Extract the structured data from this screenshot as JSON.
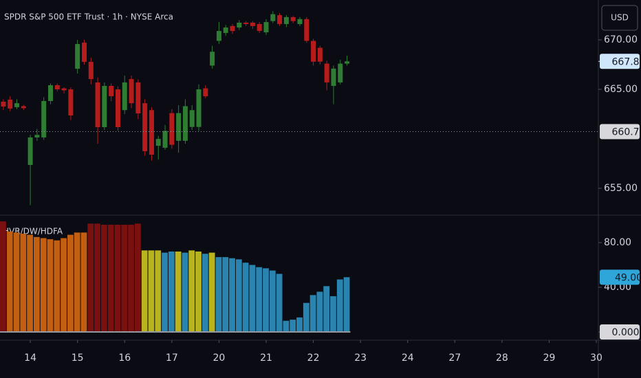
{
  "toolbar": {
    "currency": "USD"
  },
  "chart_data": [
    {
      "type": "candlestick",
      "title": "SPDR S&P 500 ETF Trust · 1h · NYSE Arca",
      "open": [
        663.75,
        663.96,
        663.2,
        663.3,
        657.36,
        660.14,
        660.14,
        663.82,
        665.42,
        665.1,
        665.0,
        667.08,
        669.72,
        667.78,
        665.7,
        661.18,
        665.35,
        665.0,
        662.9,
        666.04,
        665.7,
        663.6,
        662.9,
        659.3,
        659.1,
        662.6,
        659.8,
        659.8,
        661.2,
        661.2,
        665.1,
        667.4,
        669.9,
        670.7,
        671.4,
        671.25,
        671.74,
        671.74,
        671.6,
        670.76,
        671.9,
        672.5,
        671.6,
        672.3,
        671.6,
        672.1,
        669.9,
        669.2,
        667.6,
        665.35,
        665.7,
        667.6
      ],
      "high": [
        664.0,
        664.3,
        664.0,
        663.4,
        660.4,
        661.0,
        664.2,
        665.6,
        665.6,
        665.2,
        665.2,
        670.0,
        670.0,
        668.2,
        666.2,
        665.7,
        665.6,
        665.3,
        666.4,
        666.4,
        666.0,
        664.0,
        663.2,
        660.3,
        661.4,
        663.0,
        663.4,
        664.0,
        663.4,
        665.5,
        665.4,
        669.4,
        671.8,
        671.5,
        671.6,
        672.0,
        671.9,
        671.9,
        671.8,
        672.1,
        672.9,
        672.7,
        672.5,
        672.4,
        672.3,
        672.3,
        670.1,
        669.4,
        667.9,
        667.4,
        668.0,
        668.4
      ],
      "low": [
        662.9,
        662.8,
        663.0,
        662.9,
        653.3,
        659.8,
        659.9,
        663.5,
        664.8,
        664.6,
        661.9,
        666.6,
        667.5,
        665.5,
        659.5,
        660.9,
        663.8,
        660.8,
        662.5,
        663.1,
        662.0,
        658.3,
        657.8,
        657.9,
        658.9,
        659.0,
        658.6,
        659.5,
        660.9,
        660.8,
        664.1,
        667.1,
        669.6,
        670.4,
        670.6,
        671.0,
        671.4,
        671.1,
        670.7,
        670.5,
        671.7,
        671.4,
        671.3,
        671.7,
        671.4,
        669.7,
        667.4,
        667.5,
        664.9,
        663.5,
        665.5,
        667.4
      ],
      "close": [
        663.26,
        663.06,
        663.6,
        663.1,
        660.14,
        660.4,
        663.82,
        665.42,
        665.0,
        664.9,
        662.36,
        669.58,
        667.78,
        666.04,
        661.18,
        665.35,
        664.31,
        661.18,
        665.7,
        663.6,
        662.57,
        658.75,
        658.4,
        659.99,
        660.8,
        659.4,
        662.6,
        663.3,
        662.9,
        665.0,
        664.3,
        668.8,
        670.9,
        671.25,
        670.9,
        671.74,
        671.6,
        671.4,
        670.9,
        671.8,
        672.6,
        671.6,
        672.3,
        671.9,
        672.1,
        669.9,
        667.8,
        667.8,
        665.7,
        667.1,
        667.6,
        667.83
      ],
      "up_color": "#2e7d32",
      "down_color": "#b71c1c",
      "xlim": [
        -0.5,
        88.3
      ],
      "ylim": [
        652.29,
        674.03
      ],
      "yticks": [
        {
          "value": 670,
          "label": "670.00"
        },
        {
          "value": 665,
          "label": "665.00"
        },
        {
          "value": 655,
          "label": "655.00"
        }
      ],
      "last_price": {
        "value": 667.83,
        "label": "667.83"
      },
      "crosshair": {
        "value": 660.73,
        "label": "660.73"
      }
    },
    {
      "type": "bar",
      "title": "HVR/DW/HDFA",
      "values": [
        99,
        90,
        89,
        88,
        87,
        85,
        84,
        83,
        82,
        84,
        87,
        89,
        89,
        97,
        97,
        96,
        96,
        96,
        96,
        96,
        97,
        73,
        73,
        73,
        71,
        72,
        72,
        71,
        73,
        72,
        70,
        71,
        67,
        67,
        66,
        65,
        62,
        60,
        58,
        57,
        55,
        52,
        10,
        11,
        13,
        26,
        33,
        36,
        41,
        32,
        47,
        49
      ],
      "colors": [
        "#7b1010",
        "#c25f10",
        "#c25f10",
        "#c25f10",
        "#c25f10",
        "#c25f10",
        "#c25f10",
        "#c25f10",
        "#c25f10",
        "#c25f10",
        "#c25f10",
        "#c25f10",
        "#c25f10",
        "#7b1010",
        "#7b1010",
        "#7b1010",
        "#7b1010",
        "#7b1010",
        "#7b1010",
        "#7b1010",
        "#7b1010",
        "#b8b41e",
        "#b8b41e",
        "#b8b41e",
        "#2a84b0",
        "#2a84b0",
        "#b8b41e",
        "#2a84b0",
        "#b8b41e",
        "#b8b41e",
        "#2a84b0",
        "#b8b41e",
        "#2a84b0",
        "#2a84b0",
        "#2a84b0",
        "#2a84b0",
        "#2a84b0",
        "#2a84b0",
        "#2a84b0",
        "#2a84b0",
        "#2a84b0",
        "#2a84b0",
        "#2a84b0",
        "#2a84b0",
        "#2a84b0",
        "#2a84b0",
        "#2a84b0",
        "#2a84b0",
        "#2a84b0",
        "#2a84b0",
        "#2a84b0",
        "#2a84b0"
      ],
      "xlim": [
        -0.5,
        88.3
      ],
      "ylim": [
        -7.4,
        104.6
      ],
      "yticks": [
        {
          "value": 80,
          "label": "80.00"
        },
        {
          "value": 40,
          "label": "40.00"
        },
        {
          "value": 0,
          "label": "0.0000"
        }
      ],
      "last_value": {
        "value": 49,
        "label": "49.00"
      },
      "xticks": [
        {
          "value": 4,
          "label": "14"
        },
        {
          "value": 11,
          "label": "15"
        },
        {
          "value": 18,
          "label": "16"
        },
        {
          "value": 25,
          "label": "17"
        },
        {
          "value": 32,
          "label": "20"
        },
        {
          "value": 39,
          "label": "21"
        },
        {
          "value": 46,
          "label": "22"
        },
        {
          "value": 53,
          "label": "23"
        },
        {
          "value": 60,
          "label": "24"
        },
        {
          "value": 67,
          "label": "27"
        },
        {
          "value": 74,
          "label": "28"
        },
        {
          "value": 81,
          "label": "29"
        },
        {
          "value": 88,
          "label": "30"
        }
      ]
    }
  ]
}
